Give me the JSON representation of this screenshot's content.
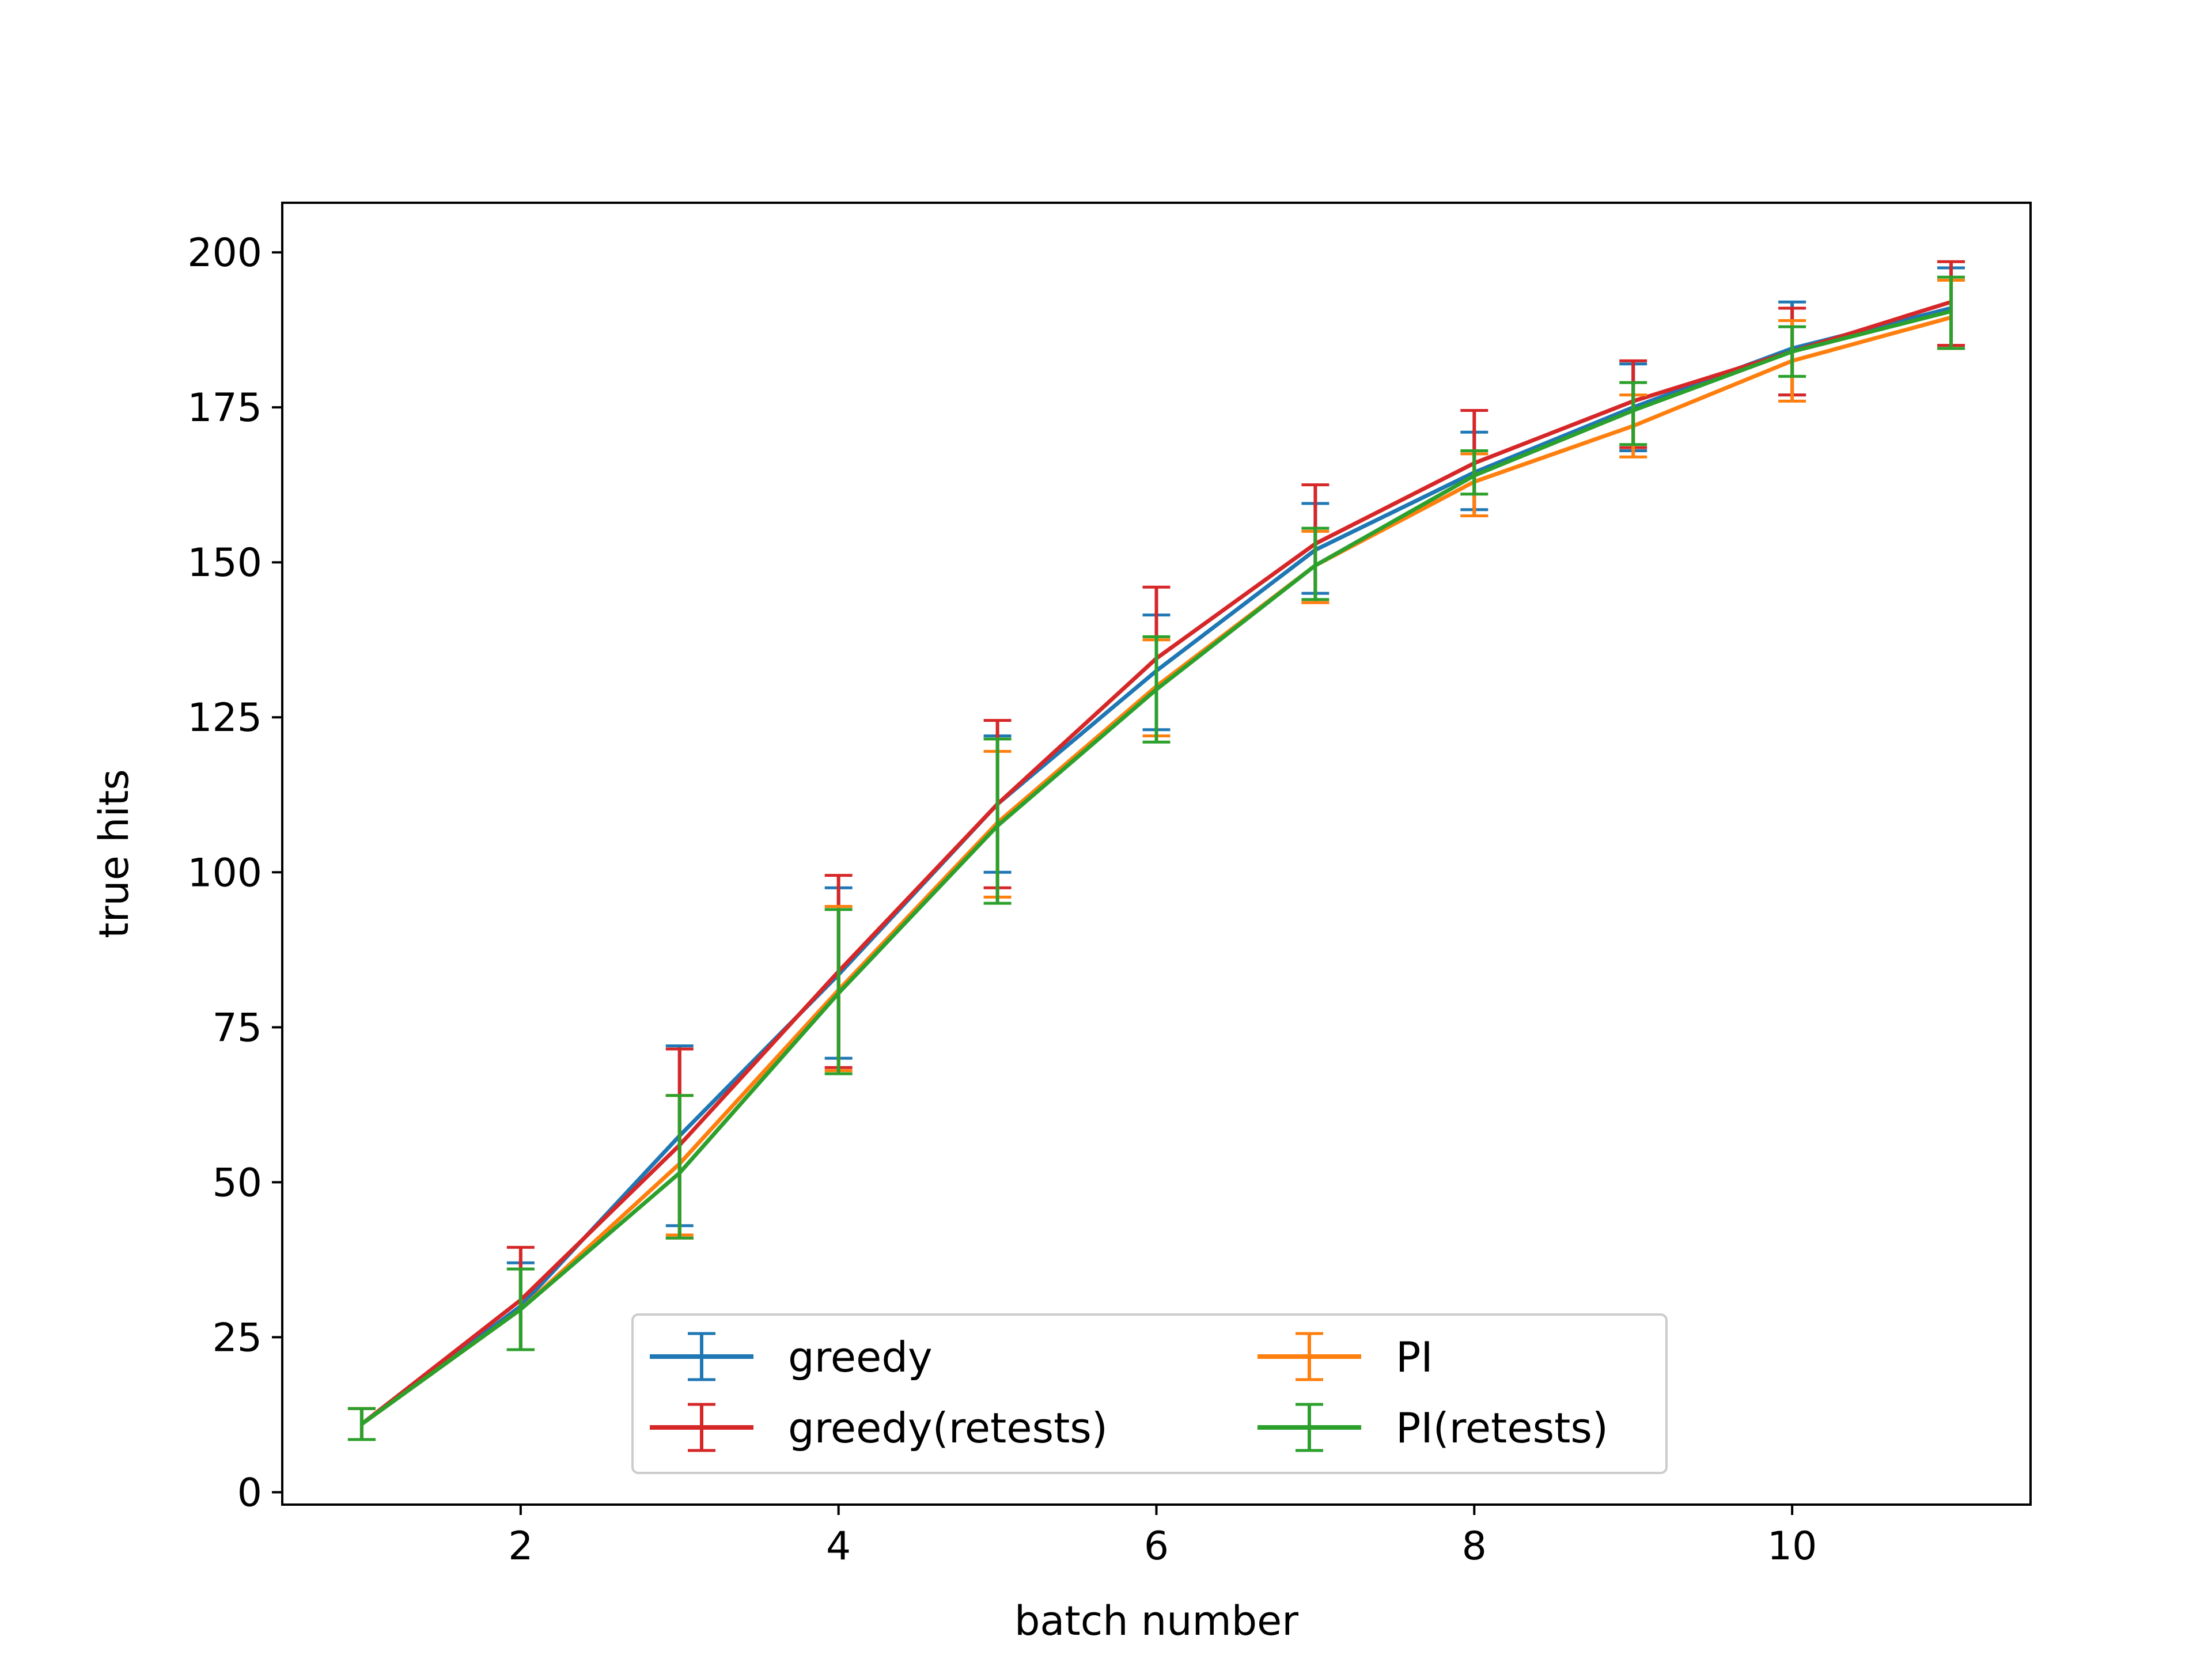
{
  "chart_data": {
    "type": "line",
    "xlabel": "batch number",
    "ylabel": "true hits",
    "xlim": [
      0.5,
      11.5
    ],
    "ylim": [
      -2,
      208
    ],
    "xticks": [
      2,
      4,
      6,
      8,
      10
    ],
    "yticks": [
      0,
      25,
      50,
      75,
      100,
      125,
      150,
      175,
      200
    ],
    "grid": false,
    "legend_position": "lower center",
    "legend_columns": 2,
    "x": [
      1,
      2,
      3,
      4,
      5,
      6,
      7,
      8,
      9,
      10,
      11
    ],
    "series": [
      {
        "name": "greedy",
        "color": "#1f77b4",
        "values": [
          11,
          30,
          57.5,
          83.5,
          111,
          132.5,
          152,
          164.5,
          175,
          184.5,
          191
        ],
        "err_low": [
          8.5,
          23,
          43,
          70,
          100,
          123,
          145,
          158.5,
          168,
          177,
          184.5
        ],
        "err_high": [
          13.5,
          37,
          72,
          97.5,
          122,
          141.5,
          159.5,
          171,
          182,
          192,
          197.5
        ]
      },
      {
        "name": "greedy(retests)",
        "color": "#d62728",
        "values": [
          11,
          31,
          56,
          84,
          111,
          134.5,
          153,
          166,
          176,
          184,
          192
        ],
        "err_low": [
          8.5,
          23,
          41,
          68.5,
          97.5,
          122,
          143.5,
          157.5,
          168.5,
          177,
          185
        ],
        "err_high": [
          13.5,
          39.5,
          71.5,
          99.5,
          124.5,
          146,
          162.5,
          174.5,
          182.5,
          191,
          198.5
        ]
      },
      {
        "name": "PI",
        "color": "#ff7f0e",
        "values": [
          11,
          29.5,
          53,
          81,
          108,
          130,
          149.5,
          163,
          172,
          182.5,
          189.5
        ],
        "err_low": [
          8.5,
          23,
          41.5,
          68,
          96,
          122,
          143.5,
          157.5,
          167,
          176,
          184.5
        ],
        "err_high": [
          13.5,
          36,
          64,
          94.5,
          119.5,
          137.5,
          155,
          167.5,
          177,
          189,
          195.5
        ]
      },
      {
        "name": "PI(retests)",
        "color": "#2ca02c",
        "values": [
          11,
          29.5,
          51.5,
          80.5,
          107.5,
          129.5,
          149.5,
          164,
          174.5,
          184,
          190.5
        ],
        "err_low": [
          8.5,
          23,
          41,
          67.5,
          95,
          121,
          144,
          161,
          169,
          180,
          184.5
        ],
        "err_high": [
          13.5,
          36,
          64,
          94,
          121.5,
          138,
          155.5,
          168,
          179,
          188,
          196
        ]
      }
    ],
    "legend": [
      {
        "label": "greedy",
        "color": "#1f77b4"
      },
      {
        "label": "PI",
        "color": "#ff7f0e"
      },
      {
        "label": "greedy(retests)",
        "color": "#d62728"
      },
      {
        "label": "PI(retests)",
        "color": "#2ca02c"
      }
    ]
  }
}
